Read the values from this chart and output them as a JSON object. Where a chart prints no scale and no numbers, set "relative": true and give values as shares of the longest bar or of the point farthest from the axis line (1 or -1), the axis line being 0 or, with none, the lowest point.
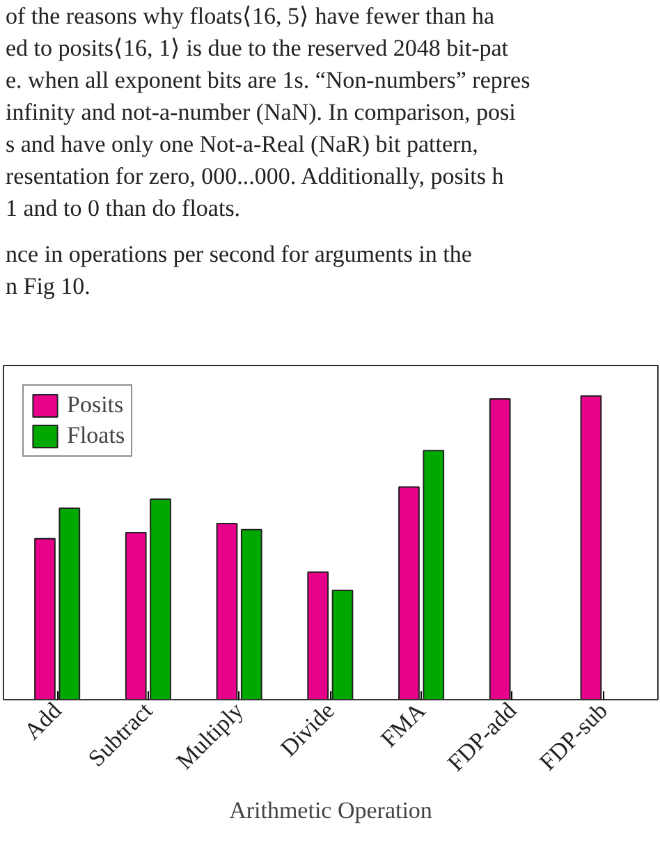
{
  "chart_data": {
    "type": "bar",
    "relative": true,
    "xlabel": "Arithmetic Operation",
    "annotations": [
      "of the reasons why floats⟨16, 5⟩ have fewer than ha",
      "ed to posits⟨16, 1⟩ is due to the reserved 2048 bit-pat",
      "e. when all exponent bits are 1s. “Non-numbers” repres",
      "infinity and not-a-number (NaN). In comparison, posi",
      "s and have only one Not-a-Real (NaR) bit pattern,",
      "resentation for zero, 000...000. Additionally, posits h",
      "1 and to 0 than do floats.",
      "nce in operations per second for arguments in the",
      "n Fig 10."
    ],
    "categories": [
      "Add",
      "Subtract",
      "Multiply",
      "Divide",
      "FMA",
      "FDP-add",
      "FDP-sub"
    ],
    "series": [
      {
        "name": "Posits",
        "color": "#e6008a",
        "values": [
          0.53,
          0.55,
          0.58,
          0.42,
          0.7,
          0.99,
          1.0
        ]
      },
      {
        "name": "Floats",
        "color": "#00a800",
        "values": [
          0.63,
          0.66,
          0.56,
          0.36,
          0.82,
          null,
          null
        ]
      }
    ],
    "legend": "top left"
  }
}
